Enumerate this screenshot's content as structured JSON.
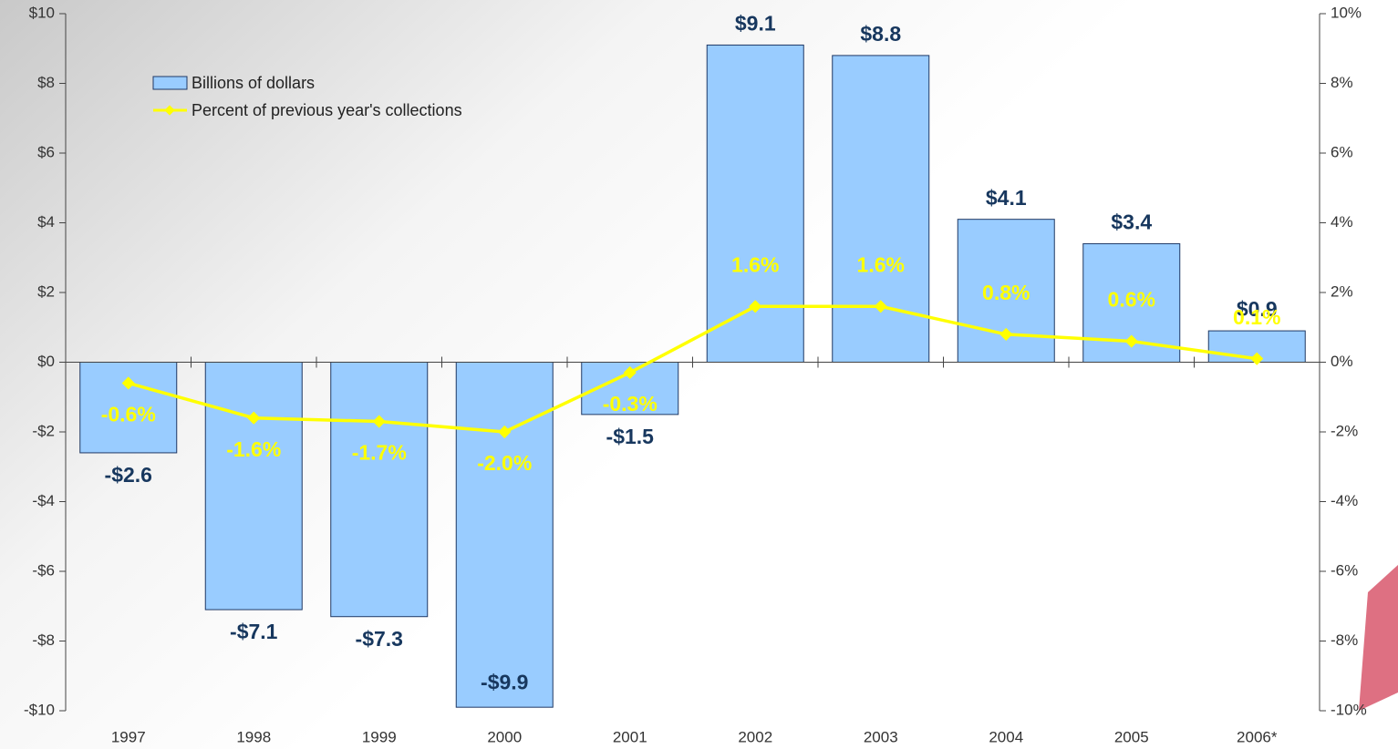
{
  "chart_data": {
    "type": "bar",
    "categories": [
      "1997",
      "1998",
      "1999",
      "2000",
      "2001",
      "2002",
      "2003",
      "2004",
      "2005",
      "2006*"
    ],
    "series": [
      {
        "name": "Billions of dollars",
        "type": "bar",
        "color": "#99ccff",
        "values": [
          -2.6,
          -7.1,
          -7.3,
          -9.9,
          -1.5,
          9.1,
          8.8,
          4.1,
          3.4,
          0.9
        ],
        "value_labels": [
          "-$2.6",
          "-$7.1",
          "-$7.3",
          "-$9.9",
          "-$1.5",
          "$9.1",
          "$8.8",
          "$4.1",
          "$3.4",
          "$0.9"
        ]
      },
      {
        "name": "Percent of previous year's collections",
        "type": "line",
        "color": "#ffff00",
        "axis": "y2",
        "values": [
          -0.6,
          -1.6,
          -1.7,
          -2.0,
          -0.3,
          1.6,
          1.6,
          0.8,
          0.6,
          0.1
        ],
        "value_labels": [
          "-0.6%",
          "-1.6%",
          "-1.7%",
          "-2.0%",
          "-0.3%",
          "1.6%",
          "1.6%",
          "0.8%",
          "0.6%",
          "0.1%"
        ]
      }
    ],
    "ylim": [
      -10,
      10
    ],
    "yticks": [
      {
        "value": -10,
        "label": "-$10"
      },
      {
        "value": -8,
        "label": "-$8"
      },
      {
        "value": -6,
        "label": "-$6"
      },
      {
        "value": -4,
        "label": "-$4"
      },
      {
        "value": -2,
        "label": "-$2"
      },
      {
        "value": 0,
        "label": "$0"
      },
      {
        "value": 2,
        "label": "$2"
      },
      {
        "value": 4,
        "label": "$4"
      },
      {
        "value": 6,
        "label": "$6"
      },
      {
        "value": 8,
        "label": "$8"
      },
      {
        "value": 10,
        "label": "$10"
      }
    ],
    "y2lim": [
      -10,
      10
    ],
    "y2ticks": [
      {
        "value": -10,
        "label": "-10%"
      },
      {
        "value": -8,
        "label": "-8%"
      },
      {
        "value": -6,
        "label": "-6%"
      },
      {
        "value": -4,
        "label": "-4%"
      },
      {
        "value": -2,
        "label": "-2%"
      },
      {
        "value": 0,
        "label": "0%"
      },
      {
        "value": 2,
        "label": "2%"
      },
      {
        "value": 4,
        "label": "4%"
      },
      {
        "value": 6,
        "label": "6%"
      },
      {
        "value": 8,
        "label": "8%"
      },
      {
        "value": 10,
        "label": "10%"
      }
    ],
    "legend": "upper left"
  }
}
